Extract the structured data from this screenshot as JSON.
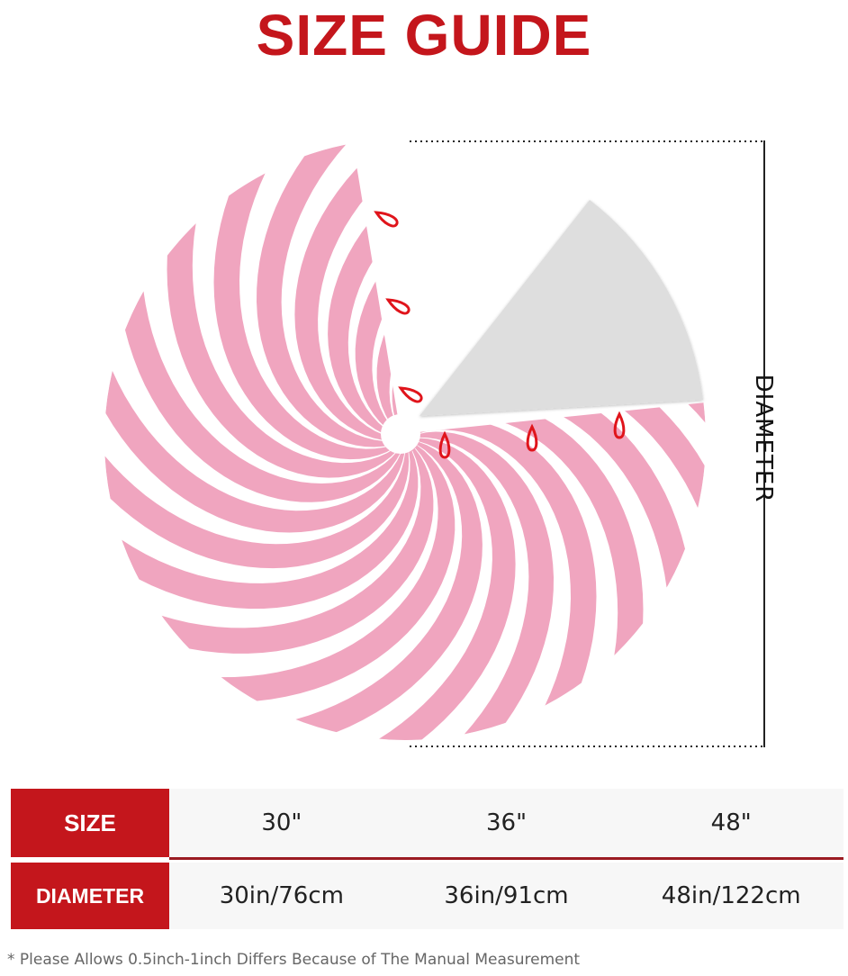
{
  "title": "SIZE GUIDE",
  "diameter_label": "DIAMETER",
  "colors": {
    "accent": "#c4161c",
    "pink": "#f0a5bf",
    "stripe": "#ffffff",
    "lining": "#dedede",
    "loop": "#e0141b"
  },
  "table": {
    "rows": [
      {
        "header": "SIZE",
        "cells": [
          "30\"",
          "36\"",
          "48\""
        ]
      },
      {
        "header": "DIAMETER",
        "cells": [
          "30in/76cm",
          "36in/91cm",
          "48in/122cm"
        ]
      }
    ]
  },
  "note": "* Please Allows 0.5inch-1inch Differs Because of The  Manual Measurement"
}
